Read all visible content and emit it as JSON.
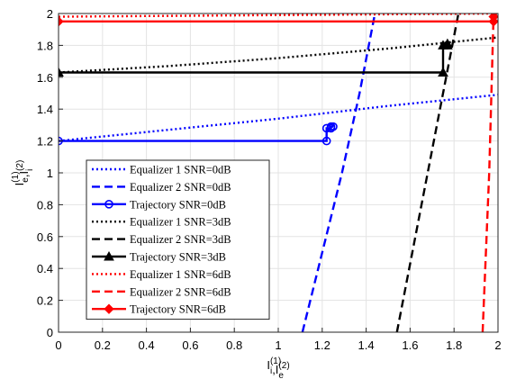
{
  "chart_data": {
    "type": "line",
    "xlabel": [
      {
        "base": "I",
        "sub": "i",
        "sup": "(1)"
      },
      {
        "base": ",I",
        "sub": "e",
        "sup": "(2)"
      }
    ],
    "ylabel": [
      {
        "base": "I",
        "sub": "e",
        "sup": "(1)"
      },
      {
        "base": ",I",
        "sub": "i",
        "sup": "(2)"
      }
    ],
    "xlim": [
      0,
      2
    ],
    "ylim": [
      0,
      2
    ],
    "xticks": [
      0,
      0.2,
      0.4,
      0.6,
      0.8,
      1,
      1.2,
      1.4,
      1.6,
      1.8,
      2
    ],
    "yticks": [
      0,
      0.2,
      0.4,
      0.6,
      0.8,
      1,
      1.2,
      1.4,
      1.6,
      1.8,
      2
    ],
    "grid": true,
    "legend": "lower left",
    "series": [
      {
        "name": "Equalizer 1 SNR=0dB",
        "color": "#0000ff",
        "dash": "dotted",
        "x": [
          0,
          0.5,
          1,
          1.5,
          2
        ],
        "values": [
          1.2,
          1.27,
          1.34,
          1.42,
          1.49
        ]
      },
      {
        "name": "Equalizer 2 SNR=0dB",
        "color": "#0000ff",
        "dash": "dashed",
        "x": [
          1.11,
          1.2,
          1.29,
          1.37,
          1.44
        ],
        "values": [
          0,
          0.5,
          1,
          1.5,
          2
        ]
      },
      {
        "name": "Trajectory SNR=0dB",
        "color": "#0000ff",
        "dash": "solid",
        "marker": "circle",
        "x": [
          0,
          1.22,
          1.22,
          1.24,
          1.24,
          1.25
        ],
        "values": [
          1.2,
          1.2,
          1.28,
          1.28,
          1.29,
          1.29
        ]
      },
      {
        "name": "Equalizer 1 SNR=3dB",
        "color": "#000000",
        "dash": "dotted",
        "x": [
          0,
          0.5,
          1,
          1.5,
          2
        ],
        "values": [
          1.63,
          1.67,
          1.72,
          1.78,
          1.85
        ]
      },
      {
        "name": "Equalizer 2 SNR=3dB",
        "color": "#000000",
        "dash": "dashed",
        "x": [
          1.54,
          1.61,
          1.68,
          1.75,
          1.82
        ],
        "values": [
          0,
          0.5,
          1,
          1.5,
          2
        ]
      },
      {
        "name": "Trajectory SNR=3dB",
        "color": "#000000",
        "dash": "solid",
        "marker": "triangle",
        "x": [
          0,
          1.75,
          1.75,
          1.77,
          1.77
        ],
        "values": [
          1.63,
          1.63,
          1.8,
          1.8,
          1.81
        ]
      },
      {
        "name": "Equalizer 1 SNR=6dB",
        "color": "#ff0000",
        "dash": "dotted",
        "x": [
          0,
          1,
          2
        ],
        "values": [
          1.98,
          1.99,
          2
        ]
      },
      {
        "name": "Equalizer 2 SNR=6dB",
        "color": "#ff0000",
        "dash": "dashed",
        "x": [
          1.93,
          1.96,
          1.98
        ],
        "values": [
          0,
          1,
          2
        ]
      },
      {
        "name": "Trajectory SNR=6dB",
        "color": "#ff0000",
        "dash": "solid",
        "marker": "diamond",
        "x": [
          0,
          1.98,
          1.98
        ],
        "values": [
          1.95,
          1.95,
          1.98
        ]
      }
    ]
  }
}
